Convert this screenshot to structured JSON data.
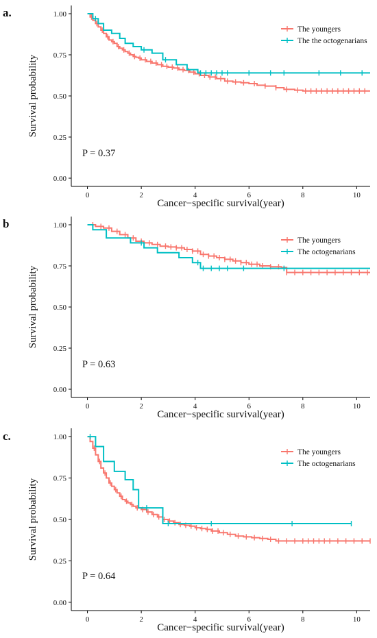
{
  "chart_data": [
    {
      "type": "line",
      "panel_label": "a.",
      "xlabel": "Cancer−specific survival(year)",
      "ylabel": "Survival probability",
      "xlim": [
        -0.6,
        10.5
      ],
      "ylim": [
        -0.05,
        1.05
      ],
      "x_ticks": [
        0,
        2,
        4,
        6,
        8,
        10
      ],
      "y_ticks": [
        "0.00",
        "0.25",
        "0.50",
        "0.75",
        "1.00"
      ],
      "grid": false,
      "legend_position": "top-right",
      "annotation": "P = 0.37",
      "series": [
        {
          "name": "The youngers",
          "color": "#F8766D",
          "x": [
            0,
            0.1,
            0.2,
            0.3,
            0.4,
            0.5,
            0.6,
            0.7,
            0.8,
            0.9,
            1.0,
            1.1,
            1.2,
            1.3,
            1.4,
            1.5,
            1.6,
            1.7,
            1.8,
            1.9,
            2.0,
            2.2,
            2.4,
            2.6,
            2.8,
            3.0,
            3.2,
            3.4,
            3.6,
            3.8,
            4.0,
            4.2,
            4.5,
            4.8,
            5.1,
            5.4,
            5.7,
            6.0,
            6.3,
            6.6,
            7.0,
            7.3,
            7.7,
            8.0,
            10.5
          ],
          "y": [
            1.0,
            0.98,
            0.96,
            0.94,
            0.92,
            0.9,
            0.88,
            0.86,
            0.84,
            0.83,
            0.82,
            0.8,
            0.79,
            0.78,
            0.77,
            0.76,
            0.75,
            0.74,
            0.735,
            0.73,
            0.72,
            0.71,
            0.7,
            0.69,
            0.68,
            0.675,
            0.67,
            0.66,
            0.655,
            0.645,
            0.635,
            0.625,
            0.615,
            0.605,
            0.59,
            0.585,
            0.58,
            0.575,
            0.565,
            0.56,
            0.55,
            0.54,
            0.535,
            0.53,
            0.53
          ],
          "censored": [
            0.15,
            0.35,
            0.55,
            0.75,
            0.95,
            1.15,
            1.35,
            1.55,
            1.75,
            1.95,
            2.15,
            2.35,
            2.55,
            2.75,
            2.95,
            3.15,
            3.35,
            3.55,
            3.75,
            3.95,
            4.15,
            4.35,
            4.55,
            4.75,
            4.95,
            5.2,
            5.5,
            5.8,
            6.2,
            6.6,
            7.0,
            7.4,
            7.8,
            8.1,
            8.3,
            8.5,
            8.7,
            8.9,
            9.1,
            9.3,
            9.5,
            9.7,
            9.9,
            10.1,
            10.3
          ]
        },
        {
          "name": "The the octogenarians",
          "color": "#00BFC4",
          "x": [
            0,
            0.2,
            0.4,
            0.6,
            0.9,
            1.2,
            1.4,
            1.7,
            2.0,
            2.4,
            2.8,
            3.3,
            3.7,
            4.1,
            10.5
          ],
          "y": [
            1.0,
            0.97,
            0.94,
            0.9,
            0.88,
            0.85,
            0.82,
            0.8,
            0.78,
            0.76,
            0.72,
            0.69,
            0.66,
            0.64,
            0.64
          ],
          "censored": [
            0.3,
            2.1,
            2.9,
            4.2,
            4.4,
            4.6,
            4.8,
            5.0,
            5.2,
            6.0,
            6.8,
            7.3,
            8.6,
            9.4,
            10.2
          ]
        }
      ]
    },
    {
      "type": "line",
      "panel_label": "b",
      "xlabel": "Cancer−specific survival(year)",
      "ylabel": "Survival probability",
      "xlim": [
        -0.6,
        10.5
      ],
      "ylim": [
        -0.05,
        1.05
      ],
      "x_ticks": [
        0,
        2,
        4,
        6,
        8,
        10
      ],
      "y_ticks": [
        "0.00",
        "0.25",
        "0.50",
        "0.75",
        "1.00"
      ],
      "grid": false,
      "legend_position": "top-right",
      "annotation": "P = 0.63",
      "series": [
        {
          "name": "The youngers",
          "color": "#F8766D",
          "x": [
            0,
            0.3,
            0.6,
            0.9,
            1.2,
            1.5,
            1.8,
            2.1,
            2.4,
            2.7,
            3.0,
            3.3,
            3.6,
            3.9,
            4.2,
            4.5,
            4.8,
            5.1,
            5.4,
            5.7,
            6.0,
            6.4,
            6.8,
            7.2,
            7.4,
            10.5
          ],
          "y": [
            1.0,
            0.99,
            0.98,
            0.96,
            0.94,
            0.92,
            0.9,
            0.89,
            0.88,
            0.87,
            0.865,
            0.86,
            0.85,
            0.84,
            0.82,
            0.81,
            0.8,
            0.79,
            0.78,
            0.77,
            0.76,
            0.75,
            0.745,
            0.74,
            0.71,
            0.71
          ],
          "censored": [
            0.2,
            0.5,
            0.8,
            1.1,
            1.4,
            1.7,
            2.0,
            2.3,
            2.6,
            2.9,
            3.1,
            3.3,
            3.5,
            3.7,
            3.9,
            4.1,
            4.3,
            4.5,
            4.7,
            4.9,
            5.1,
            5.3,
            5.5,
            5.7,
            5.9,
            6.1,
            6.3,
            6.5,
            6.8,
            7.1,
            7.4,
            7.7,
            8.0,
            8.3,
            8.6,
            8.9,
            9.2,
            9.5,
            9.8,
            10.1,
            10.4
          ]
        },
        {
          "name": "The octogenarians",
          "color": "#00BFC4",
          "x": [
            0,
            0.2,
            0.7,
            1.6,
            2.1,
            2.6,
            3.4,
            3.9,
            4.2,
            10.5
          ],
          "y": [
            1.0,
            0.97,
            0.92,
            0.89,
            0.86,
            0.83,
            0.8,
            0.77,
            0.735,
            0.735
          ],
          "censored": [
            2.0,
            4.1,
            4.3,
            4.6,
            4.9,
            5.2,
            5.8,
            7.3
          ]
        }
      ]
    },
    {
      "type": "line",
      "panel_label": "c.",
      "xlabel": "Cancer−specific survival(year)",
      "ylabel": "Survival probability",
      "xlim": [
        -0.6,
        10.5
      ],
      "ylim": [
        -0.05,
        1.05
      ],
      "x_ticks": [
        0,
        2,
        4,
        6,
        8,
        10
      ],
      "y_ticks": [
        "0.00",
        "0.25",
        "0.50",
        "0.75",
        "1.00"
      ],
      "grid": false,
      "legend_position": "top-right",
      "annotation": "P = 0.64",
      "series": [
        {
          "name": "The youngers",
          "color": "#F8766D",
          "x": [
            0,
            0.1,
            0.2,
            0.3,
            0.4,
            0.5,
            0.6,
            0.7,
            0.8,
            0.9,
            1.0,
            1.1,
            1.2,
            1.3,
            1.4,
            1.5,
            1.6,
            1.7,
            1.8,
            2.0,
            2.2,
            2.4,
            2.6,
            2.8,
            3.0,
            3.2,
            3.4,
            3.6,
            3.8,
            4.0,
            4.2,
            4.4,
            4.6,
            4.9,
            5.2,
            5.5,
            5.8,
            6.1,
            6.4,
            6.7,
            7.0,
            10.5
          ],
          "y": [
            1.0,
            0.97,
            0.93,
            0.89,
            0.85,
            0.81,
            0.78,
            0.75,
            0.72,
            0.7,
            0.68,
            0.66,
            0.64,
            0.62,
            0.61,
            0.6,
            0.59,
            0.58,
            0.57,
            0.56,
            0.545,
            0.53,
            0.515,
            0.5,
            0.49,
            0.48,
            0.47,
            0.465,
            0.46,
            0.45,
            0.445,
            0.44,
            0.43,
            0.42,
            0.41,
            0.4,
            0.395,
            0.39,
            0.385,
            0.38,
            0.37,
            0.37
          ],
          "censored": [
            0.25,
            0.45,
            0.65,
            0.85,
            1.05,
            1.25,
            1.45,
            1.65,
            1.85,
            2.05,
            2.25,
            2.45,
            2.65,
            2.85,
            3.05,
            3.25,
            3.45,
            3.65,
            3.85,
            4.05,
            4.25,
            4.45,
            4.65,
            4.85,
            5.05,
            5.3,
            5.6,
            5.9,
            6.2,
            6.5,
            6.8,
            7.1,
            7.4,
            7.7,
            8.0,
            8.2,
            8.4,
            8.6,
            8.8,
            9.0,
            9.3,
            9.6,
            9.9,
            10.2,
            10.5
          ]
        },
        {
          "name": "The octogenarians",
          "color": "#00BFC4",
          "x": [
            0,
            0.3,
            0.6,
            1.0,
            1.4,
            1.7,
            1.9,
            2.8,
            9.8
          ],
          "y": [
            1.0,
            0.94,
            0.85,
            0.79,
            0.74,
            0.68,
            0.57,
            0.475,
            0.475
          ],
          "censored": [
            0.1,
            2.2,
            3.0,
            4.6,
            7.6,
            9.8
          ]
        }
      ]
    }
  ]
}
